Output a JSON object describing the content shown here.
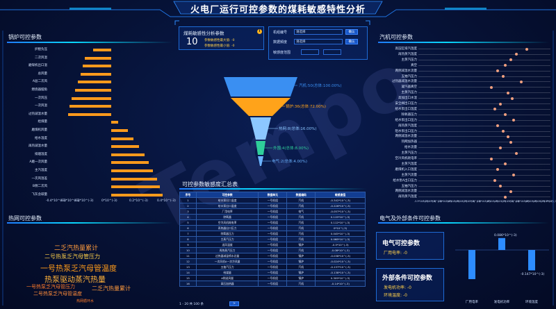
{
  "title": "火电厂运行可控参数的煤耗敏感特性分析",
  "boiler": {
    "title": "锅炉可控参数",
    "labels": [
      "炉膛负压",
      "二次风温",
      "磨煤机出口温",
      "总风量",
      "A层二次风",
      "燃烧器摆角",
      "一次风压",
      "一次风温",
      "过热减温水量",
      "给煤量",
      "磨煤机风量",
      "给水温度",
      "再热减温水量",
      "排烟温度",
      "A磨一次风量",
      "主汽温度",
      "一次风温差",
      "B侧二次风",
      "飞灰含碳量"
    ],
    "values": [
      -0.13,
      -0.19,
      -0.205,
      -0.22,
      -0.24,
      -0.26,
      -0.285,
      -0.3,
      -0.31,
      0.05,
      0.12,
      0.16,
      0.2,
      0.24,
      0.27,
      0.3,
      0.33,
      0.35,
      0.37
    ],
    "ticks": [
      "-0.4*10^(-3)",
      "-0.3*10^(-3)",
      "-0.2*10^(-3)",
      "0*10^(-3)",
      "0.2*10^(-3)",
      "0.4*10^(-3)"
    ]
  },
  "summary": {
    "title": "煤耗敏感性分析参数",
    "count": "10",
    "lines": [
      "参数敏感性最大值: -0",
      "参数敏感性最小值: -0"
    ],
    "info_icon": "info-icon"
  },
  "filters": {
    "unit_label": "机组编号",
    "unit_value": "请选择",
    "unit_btn": "确认",
    "freq_label": "数据频度",
    "freq_value": "请选择",
    "freq_btn": "确认",
    "range_label": "敏感度范围",
    "range_from": "",
    "range_to": ""
  },
  "funnel": {
    "labels": [
      "汽机:50(总体:100.00%)",
      "锅炉:36(总体:72.00%)",
      "热网:8(总体:16.00%)",
      "外围:4(总体:8.00%)",
      "电气:2(总体:4.00%)"
    ],
    "colors": [
      "#3a8ff2",
      "#ffa31a",
      "#8cc7ff",
      "#2fcf9a",
      "#6bb3ff"
    ]
  },
  "table": {
    "title": "可控参数敏感度汇总表",
    "headers": [
      "序号",
      "可控参数",
      "数据单元",
      "数据编码",
      "敏感度值"
    ],
    "rows": [
      [
        "1",
        "给水泵出口温度",
        "一号机组",
        "汽机",
        "-0.342*10^(-3)"
      ],
      [
        "2",
        "给水泵出口温度",
        "一号机组",
        "汽机",
        "-0.226*10^(-3)"
      ],
      [
        "3",
        "厂用电率",
        "一号机组",
        "电气",
        "-0.057*10^(-3)"
      ],
      [
        "4",
        "除氧器",
        "一号机组",
        "汽机",
        "0.115*10^(-3)"
      ],
      [
        "5",
        "空冷风机耗电率",
        "一号机组",
        "汽机",
        "0.112*10^(-3)"
      ],
      [
        "6",
        "再热器出口压力",
        "一号机组",
        "汽机",
        "0*10^(-3)"
      ],
      [
        "7",
        "除氧器压力",
        "一号机组",
        "汽机",
        "0.045*10^(-3)"
      ],
      [
        "8",
        "主蒸汽压力",
        "一号机组",
        "汽机",
        "0.068*10^(-3)"
      ],
      [
        "9",
        "送风温度",
        "一号机组",
        "锅炉",
        "-0.5*10^(-3)"
      ],
      [
        "10",
        "再热蒸汽压力",
        "一号机组",
        "汽机",
        "-0.08*10^(-3)"
      ],
      [
        "11",
        "过热器减温喷水总量",
        "一号机组",
        "锅炉",
        "-0.038*10^(-3)"
      ],
      [
        "12",
        "一次风机A一次冷风量",
        "一号机组",
        "锅炉",
        "-0.024*10^(-3)"
      ],
      [
        "13",
        "五抽汽压力",
        "一号机组",
        "汽机",
        "-0.137*10^(-3)"
      ],
      [
        "14",
        "给煤量",
        "一号机组",
        "锅炉",
        "-0.138*10^(-3)"
      ],
      [
        "15",
        "A侧送风量",
        "一号机组",
        "锅炉",
        "0.309*10^(-3)"
      ],
      [
        "16",
        "高压加热器",
        "一号机组",
        "汽机",
        "-0.14*10^(-3)"
      ]
    ],
    "pager": "1 - 20  共 100 条",
    "pager_next": ">"
  },
  "heat": {
    "title": "热网可控参数",
    "words": [
      {
        "t": "二乏汽热量累计",
        "c": "#ff9b3d",
        "s": 9
      },
      {
        "t": "二号热泵乏汽母管压力",
        "c": "#ffd04a",
        "s": 8
      },
      {
        "t": "一号热泵乏汽母管温度",
        "c": "#ff9b1a",
        "s": 11
      },
      {
        "t": "热泵驱动蒸汽热量",
        "c": "#ffb23a",
        "s": 11
      },
      {
        "t": "一号热泵乏汽母管压力",
        "c": "#ff7a2a",
        "s": 7
      },
      {
        "t": "二乏汽热量累计",
        "c": "#ff9b3d",
        "s": 8
      },
      {
        "t": "二号热泵乏汽母管温度",
        "c": "#ff8c3a",
        "s": 7
      },
      {
        "t": "热网循环水",
        "c": "#ff7a2a",
        "s": 5
      }
    ]
  },
  "turbine": {
    "title": "汽机可控参数",
    "labels": [
      "高压缸排汽温度",
      "再热蒸汽温度",
      "主蒸汽压力",
      "真空",
      "两侧减温水流量",
      "五抽汽压力",
      "过热器减温水流量",
      "凝汽器真空",
      "主蒸汽压力",
      "高加出口水温",
      "安全阀出口压力",
      "给水泵出口温度",
      "除氧器压力",
      "给水泵出口压力",
      "再热蒸汽温度",
      "阻水泵出口压力",
      "两侧减温水流量",
      "热网加热器",
      "给水流量",
      "主蒸汽压力",
      "空冷风机耗电率",
      "主蒸汽温度",
      "磨煤机入口温度",
      "主蒸汽流量",
      "给水泵A出口压力",
      "五抽汽压力",
      "两侧减温水流量",
      "再热蒸汽温度"
    ],
    "positions": [
      0.82,
      0.74,
      0.7,
      0.66,
      0.6,
      0.64,
      0.78,
      0.55,
      0.68,
      0.71,
      0.62,
      0.58,
      0.66,
      0.72,
      0.6,
      0.64,
      0.68,
      0.7,
      0.62,
      0.74,
      0.55,
      0.66,
      0.6,
      0.72,
      0.58,
      0.62,
      0.7,
      0.66
    ],
    "ticks": [
      "-3.3*10^(-3)",
      "-3.1*10^(-3)",
      "-3*10^(-3)",
      "-2.8*10^(-3)",
      "-2.6*10^(-3)",
      "-2.4*10^(-3)",
      "-2.2*10^(-3)",
      "-2*10^(-3)",
      "-1.8*10^(-3)",
      "-1.6*10^(-3)",
      "-1.4*10^(-3)",
      "-1.2*10^(-3)",
      "-1*10^(-3)",
      "-0.8*10^(-3)",
      "-0.6*10^(-3)",
      "-0.4*10^(-3)",
      "-0.2*10^(-3)",
      "0*10^(-3)"
    ]
  },
  "electric": {
    "title": "电气及外部条件可控参数",
    "elec_title": "电气可控参数",
    "elec_line": "厂用电率:   -0",
    "ext_title": "外部条件可控参数",
    "ext_lines": [
      "发电机功率:  -0",
      "环境温度:  -0"
    ],
    "bar_labels": [
      "0.086*10^(-3)",
      "-0.147*10^(-3)"
    ],
    "cats": [
      "厂用电率",
      "发电机功率",
      "环境温度"
    ]
  },
  "chart_data": [
    {
      "type": "bar",
      "title": "锅炉可控参数",
      "categories": [
        "炉膛负压",
        "二次风温",
        "磨煤机出口温",
        "总风量",
        "A层二次风",
        "燃烧器摆角",
        "一次风压",
        "一次风温",
        "过热减温水量",
        "给煤量",
        "磨煤机风量",
        "给水温度",
        "再热减温水量",
        "排烟温度",
        "A磨一次风量",
        "主汽温度",
        "一次风温差",
        "B侧二次风",
        "飞灰含碳量"
      ],
      "values": [
        -0.13,
        -0.19,
        -0.205,
        -0.22,
        -0.24,
        -0.26,
        -0.285,
        -0.3,
        -0.31,
        0.05,
        0.12,
        0.16,
        0.2,
        0.24,
        0.27,
        0.3,
        0.33,
        0.35,
        0.37
      ],
      "xlim": [
        -0.4,
        0.4
      ],
      "orientation": "horizontal"
    },
    {
      "type": "bar",
      "title": "电气及外部条件可控参数",
      "categories": [
        "厂用电率",
        "发电机功率",
        "环境温度"
      ],
      "values": [
        -0.21,
        0.086,
        -0.147
      ]
    }
  ]
}
